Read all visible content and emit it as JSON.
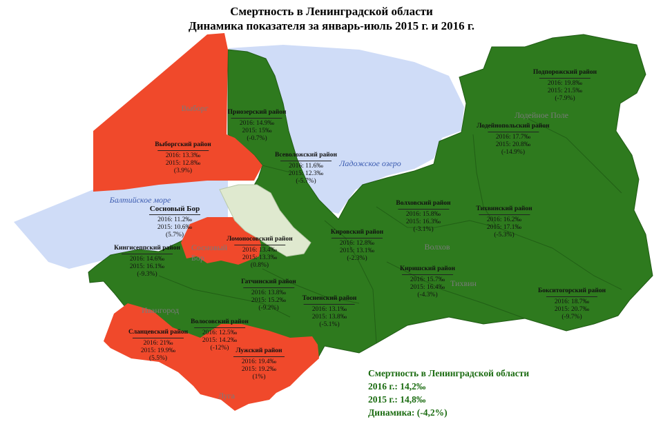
{
  "title": {
    "line1": "Смертность в Ленинградской области",
    "line2": "Динамика показателя за январь-июль 2015 г. и 2016 г."
  },
  "colors": {
    "decrease": "#2e7a1e",
    "increase": "#f0492b",
    "water": "#cfdcf7",
    "city": "#dfe9cf"
  },
  "water_labels": {
    "baltic": "Балтийское море",
    "ladoga": "Ладожское озеро"
  },
  "places": {
    "vyborg": "Выборг",
    "lodeynoe_pole": "Лодейное Поле",
    "sosnovy_bor_city": "Сосновый Бор",
    "volkhov": "Волхов",
    "tikhvin": "Тихвин",
    "ivangorod": "Ивангород",
    "luga": "Луга"
  },
  "districts": [
    {
      "id": "priozersky",
      "name": "Приозерский район",
      "v2016": "2016: 14.9‰",
      "v2015": "2015: 15‰",
      "change": "(-0.7%)",
      "trend": "decrease"
    },
    {
      "id": "vyborgsky",
      "name": "Выборгский район",
      "v2016": "2016: 13.3‰",
      "v2015": "2015: 12.8‰",
      "change": "(3.9%)",
      "trend": "increase"
    },
    {
      "id": "vsevolozhsky",
      "name": "Всеволожский район",
      "v2016": "2016: 11.6‰",
      "v2015": "2015: 12.3‰",
      "change": "(-5.7%)",
      "trend": "decrease"
    },
    {
      "id": "sosnovy_bor",
      "name": "Сосновый Бор",
      "v2016": "2016: 11.2‰",
      "v2015": "2015: 10.6‰",
      "change": "(5.7%)",
      "trend": "increase"
    },
    {
      "id": "lomonosovsky",
      "name": "Ломоносовский район",
      "v2016": "2016: 13.4‰",
      "v2015": "2015: 13.3‰",
      "change": "(0.8%)",
      "trend": "increase"
    },
    {
      "id": "kingiseppsky",
      "name": "Кингисеппский район",
      "v2016": "2016: 14.6‰",
      "v2015": "2015: 16.1‰",
      "change": "(-9.3%)",
      "trend": "decrease"
    },
    {
      "id": "kirovsky",
      "name": "Кировский район",
      "v2016": "2016: 12.8‰",
      "v2015": "2015: 13.1‰",
      "change": "(-2.3%)",
      "trend": "decrease"
    },
    {
      "id": "gatchinsky",
      "name": "Гатчинский район",
      "v2016": "2016: 13.8‰",
      "v2015": "2015: 15.2‰",
      "change": "(-9.2%)",
      "trend": "decrease"
    },
    {
      "id": "tosnensky",
      "name": "Тосненский район",
      "v2016": "2016: 13.1‰",
      "v2015": "2015: 13.8‰",
      "change": "(-5.1%)",
      "trend": "decrease"
    },
    {
      "id": "volosovsky",
      "name": "Волосовский район",
      "v2016": "2016: 12.5‰",
      "v2015": "2015: 14.2‰",
      "change": "(-12%)",
      "trend": "decrease"
    },
    {
      "id": "slantsevsky",
      "name": "Сланцевский район",
      "v2016": "2016: 21‰",
      "v2015": "2015: 19.9‰",
      "change": "(5.5%)",
      "trend": "increase"
    },
    {
      "id": "luzhsky",
      "name": "Лужский район",
      "v2016": "2016: 19.4‰",
      "v2015": "2015: 19.2‰",
      "change": "(1%)",
      "trend": "increase"
    },
    {
      "id": "volkhovsky",
      "name": "Волховский район",
      "v2016": "2016: 15.8‰",
      "v2015": "2015: 16.3‰",
      "change": "(-3.1%)",
      "trend": "decrease"
    },
    {
      "id": "kirishsky",
      "name": "Киришский район",
      "v2016": "2016: 15.7‰",
      "v2015": "2015: 16.4‰",
      "change": "(-4.3%)",
      "trend": "decrease"
    },
    {
      "id": "tikhvinsky",
      "name": "Тихвинский район",
      "v2016": "2016: 16.2‰",
      "v2015": "2015: 17.1‰",
      "change": "(-5.3%)",
      "trend": "decrease"
    },
    {
      "id": "podporozhsky",
      "name": "Подпорожский район",
      "v2016": "2016: 19.8‰",
      "v2015": "2015: 21.5‰",
      "change": "(-7.9%)",
      "trend": "decrease"
    },
    {
      "id": "lodeynopolsky",
      "name": "Лодейнопольский район",
      "v2016": "2016: 17.7‰",
      "v2015": "2015: 20.8‰",
      "change": "(-14.9%)",
      "trend": "decrease"
    },
    {
      "id": "boksitogorsky",
      "name": "Бокситогорский район",
      "v2016": "2016: 18.7‰",
      "v2015": "2015: 20.7‰",
      "change": "(-9.7%)",
      "trend": "decrease"
    }
  ],
  "summary": {
    "title": "Смертность в Ленинградской области",
    "y2016": "2016 г.: 14,2‰",
    "y2015": "2015 г.: 14,8‰",
    "change": "Динамика: (-4,2%)"
  }
}
